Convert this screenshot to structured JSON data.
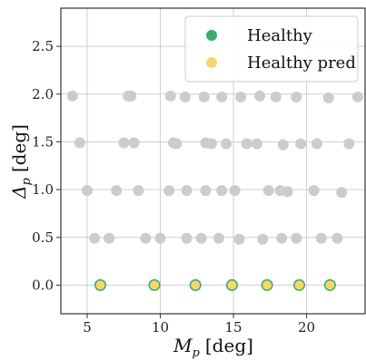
{
  "chart_data": {
    "type": "scatter",
    "xlabel_main": "M",
    "xlabel_sub": "p",
    "xlabel_unit": "[deg]",
    "ylabel_main": "Δ",
    "ylabel_sub": "p",
    "ylabel_unit": "[deg]",
    "xlim": [
      3.2,
      24.0
    ],
    "ylim": [
      -0.3,
      2.9
    ],
    "xticks": [
      5,
      10,
      15,
      20
    ],
    "xtick_labels": [
      "5",
      "10",
      "15",
      "20"
    ],
    "yticks": [
      0.0,
      0.5,
      1.0,
      1.5,
      2.0,
      2.5
    ],
    "ytick_labels": [
      "0.0",
      "0.5",
      "1.0",
      "1.5",
      "2.0",
      "2.5"
    ],
    "grid": true,
    "legend_position": "top-right",
    "legend": [
      {
        "label": "Healthy",
        "color": "#3aaa6e"
      },
      {
        "label": "Healthy pred",
        "color": "#f5d76e"
      }
    ],
    "background_points": {
      "color": "#cccccc",
      "x": [
        4.0,
        7.8,
        8.0,
        10.7,
        11.7,
        13.0,
        14.2,
        15.5,
        16.8,
        17.9,
        19.3,
        21.5,
        23.5,
        4.5,
        7.5,
        8.2,
        10.9,
        11.1,
        13.1,
        13.5,
        14.5,
        15.9,
        16.6,
        18.4,
        19.6,
        20.7,
        22.9,
        5.0,
        7.0,
        8.5,
        10.6,
        11.8,
        13.1,
        14.2,
        15.1,
        17.4,
        18.2,
        18.7,
        20.5,
        22.4,
        5.5,
        6.5,
        9.0,
        10.0,
        11.8,
        12.8,
        14.0,
        15.4,
        17.0,
        18.3,
        19.3,
        21.0,
        22.1
      ],
      "y": [
        1.98,
        1.98,
        1.98,
        1.98,
        1.97,
        1.97,
        1.97,
        1.97,
        1.98,
        1.97,
        1.97,
        1.96,
        1.97,
        1.49,
        1.49,
        1.49,
        1.49,
        1.48,
        1.49,
        1.48,
        1.48,
        1.48,
        1.48,
        1.47,
        1.48,
        1.48,
        1.48,
        0.99,
        0.99,
        0.99,
        0.99,
        0.99,
        0.99,
        0.99,
        0.99,
        0.99,
        0.99,
        0.98,
        0.99,
        0.97,
        0.49,
        0.49,
        0.49,
        0.49,
        0.49,
        0.49,
        0.49,
        0.48,
        0.48,
        0.49,
        0.49,
        0.49,
        0.49
      ]
    },
    "series": [
      {
        "name": "Healthy",
        "color": "#3aaa6e",
        "x": [
          5.9,
          9.6,
          12.4,
          14.9,
          17.3,
          19.5,
          21.6
        ],
        "y": [
          0,
          0,
          0,
          0,
          0,
          0,
          0
        ]
      },
      {
        "name": "Healthy pred",
        "color": "#f5d76e",
        "x": [
          5.9,
          9.6,
          12.4,
          14.9,
          17.3,
          19.5,
          21.6
        ],
        "y": [
          0,
          0,
          0,
          0,
          0,
          0,
          0
        ]
      }
    ]
  }
}
